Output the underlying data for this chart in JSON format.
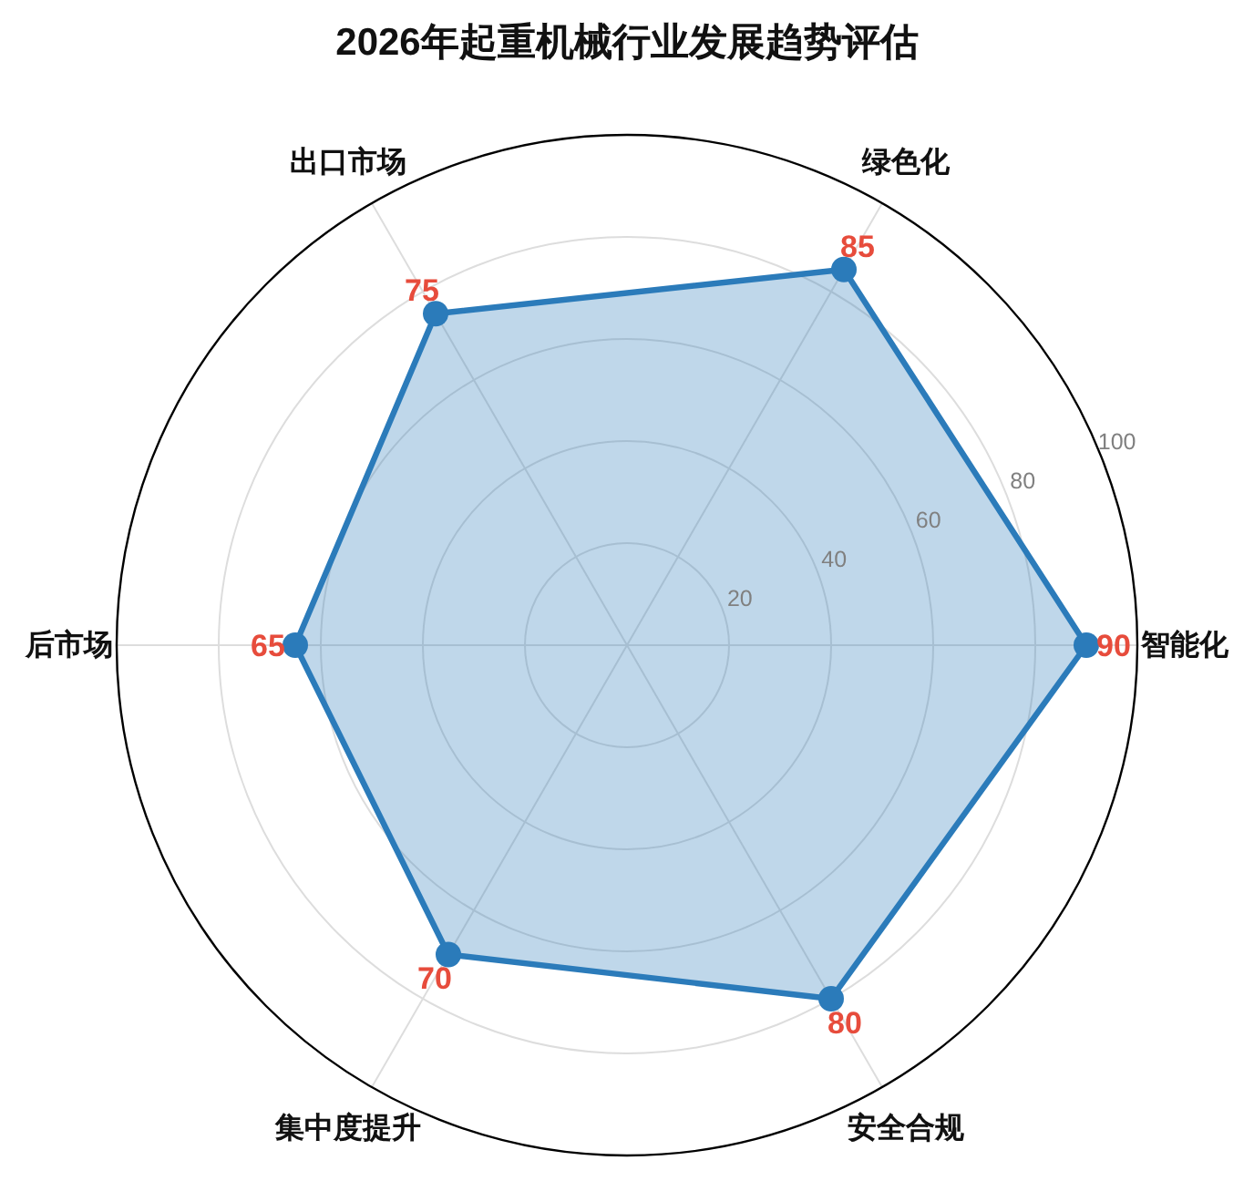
{
  "chart_data": {
    "type": "radar",
    "title": "2026年起重机械行业发展趋势评估",
    "categories": [
      "绿色化",
      "智能化",
      "安全合规",
      "集中度提升",
      "后市场",
      "出口市场"
    ],
    "series": [
      {
        "color": "#2b7bba",
        "values": [
          85,
          90,
          80,
          70,
          65,
          75
        ]
      }
    ],
    "ylim": [
      0,
      100
    ],
    "yticks": [
      20,
      40,
      60,
      80,
      100
    ],
    "grid": true,
    "marker": "circle",
    "data_labels": true
  }
}
